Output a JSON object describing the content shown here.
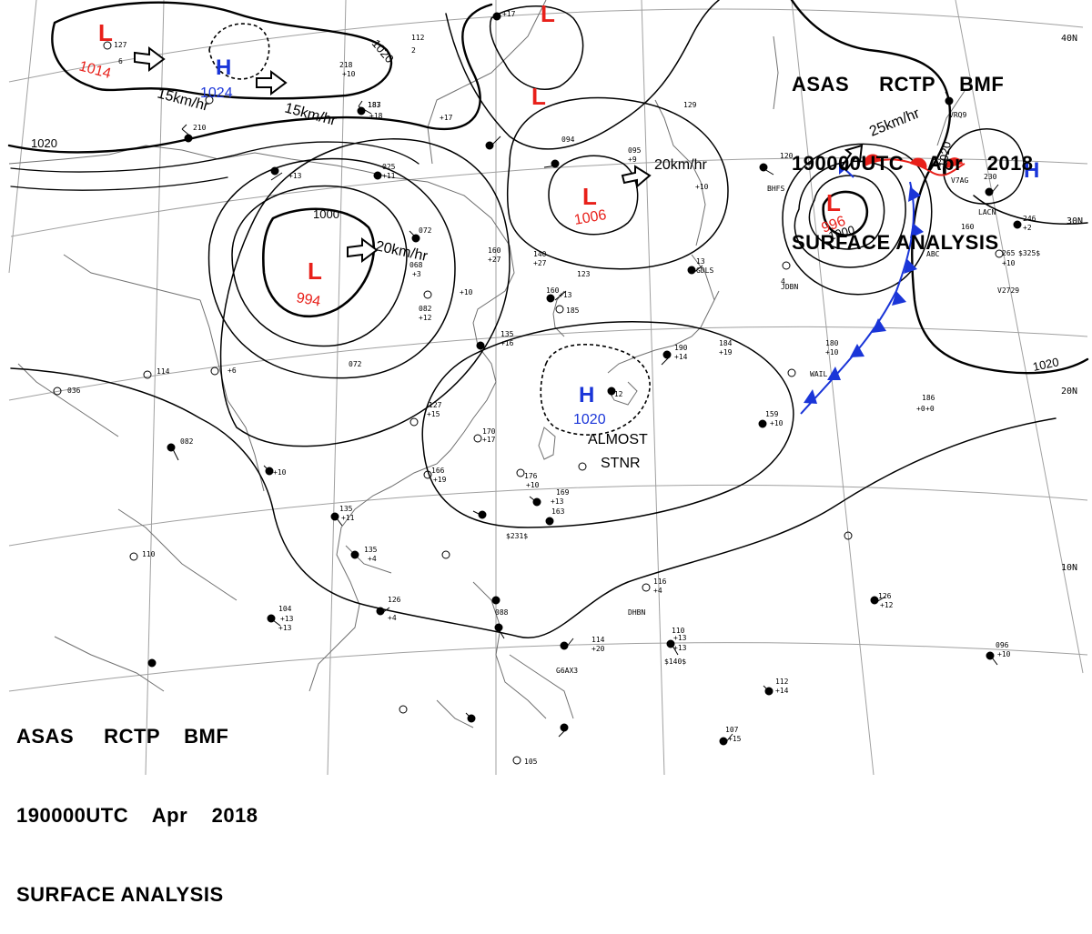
{
  "header": {
    "line1": "ASAS     RCTP    BMF",
    "line2": "190000UTC    Apr    2018",
    "line3": "SURFACE ANALYSIS"
  },
  "colors": {
    "low": "#e8201a",
    "high": "#1a35d8",
    "isobar": "#000000",
    "grid": "#a0a0a0"
  },
  "lat_labels": [
    "40N",
    "30N",
    "20N",
    "10N"
  ],
  "isobars": [
    "1020",
    "1020",
    "1000",
    "1000",
    "1020",
    "1020"
  ],
  "systems": [
    {
      "type": "L",
      "pressure": "1014"
    },
    {
      "type": "H",
      "pressure": "1024"
    },
    {
      "type": "L",
      "pressure": "994"
    },
    {
      "type": "L",
      "pressure": "1006"
    },
    {
      "type": "L",
      "pressure": "996"
    },
    {
      "type": "H",
      "pressure": "1020"
    },
    {
      "type": "L",
      "pressure": ""
    },
    {
      "type": "L",
      "pressure": ""
    },
    {
      "type": "H",
      "pressure": ""
    }
  ],
  "motions": [
    "15km/hr",
    "15km/hr",
    "20km/hr",
    "20km/hr",
    "25km/hr"
  ],
  "note": {
    "line1": "ALMOST",
    "line2": "STNR"
  },
  "stations": [
    "127",
    "6",
    "112",
    "2",
    "218",
    "+10",
    "187",
    "+18",
    "+17",
    "+17",
    "+13",
    "129",
    "094",
    "095",
    "+9",
    "025",
    "+11",
    "210",
    "072",
    "068",
    "+3",
    "082",
    "+12",
    "072",
    "160",
    "+27",
    "140",
    "+27",
    "123",
    "+10",
    "+13",
    "185",
    "135",
    "+16",
    "190",
    "+14",
    "184",
    "+19",
    "+10",
    "120",
    "160",
    "180",
    "+10",
    "159",
    "+10",
    "186",
    "+0",
    "127",
    "+15",
    "170",
    "+17",
    "176",
    "+10",
    "166",
    "+19",
    "169",
    "+13",
    "163",
    "135",
    "+11",
    "135",
    "+4",
    "126",
    "+4",
    "082",
    "+10",
    "+13",
    "036",
    "114",
    "+6",
    "+12",
    "116",
    "+4",
    "110",
    "+13",
    "104",
    "+13",
    "088",
    "114",
    "+20",
    "110",
    "+13",
    "$140$",
    "096",
    "+10",
    "112",
    "+14",
    "107",
    "+15",
    "105",
    "126",
    "+12",
    "160",
    "+0",
    "246",
    "+2",
    "265",
    "$325$",
    "+10",
    "V2729",
    "230",
    "LACN",
    "12",
    "V7AG",
    "VRQ9",
    "4",
    "13",
    "GDLS",
    "BHFS",
    "JDBN",
    "WAIL",
    "DHBN",
    "G6AX3",
    "$231$",
    "183",
    "ABC"
  ]
}
